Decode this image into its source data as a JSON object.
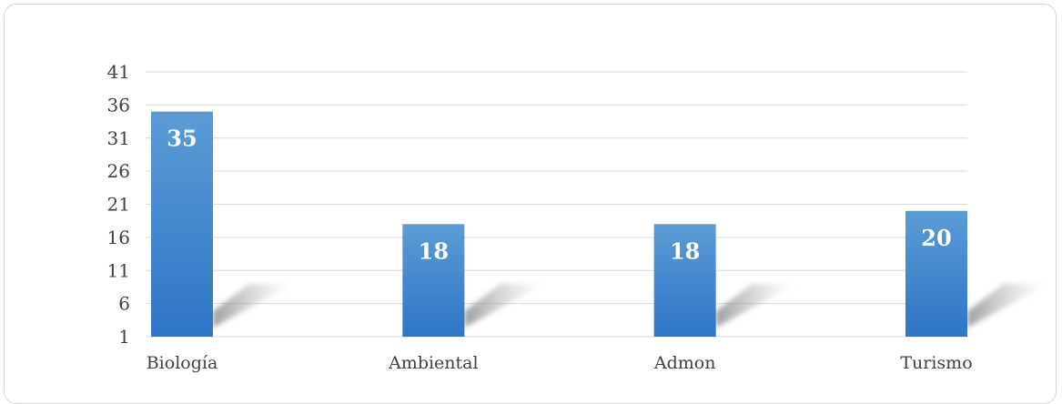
{
  "chart_data": {
    "type": "bar",
    "categories": [
      "Biología",
      "Ambiental",
      "Admon",
      "Turismo"
    ],
    "values": [
      35,
      18,
      18,
      20
    ],
    "data_labels": [
      "35",
      "18",
      "18",
      "20"
    ],
    "yticks": [
      1,
      6,
      11,
      16,
      21,
      26,
      31,
      36,
      41
    ],
    "ylim": [
      1,
      41
    ],
    "grid": true,
    "legend": "none",
    "title": "",
    "xlabel": "",
    "ylabel": "",
    "colors": {
      "bar_top": "#5b9bd5",
      "bar_bottom": "#2e75c6",
      "grid": "#d9d9d9",
      "text": "#404040",
      "frame": "#d6d6d6"
    }
  }
}
